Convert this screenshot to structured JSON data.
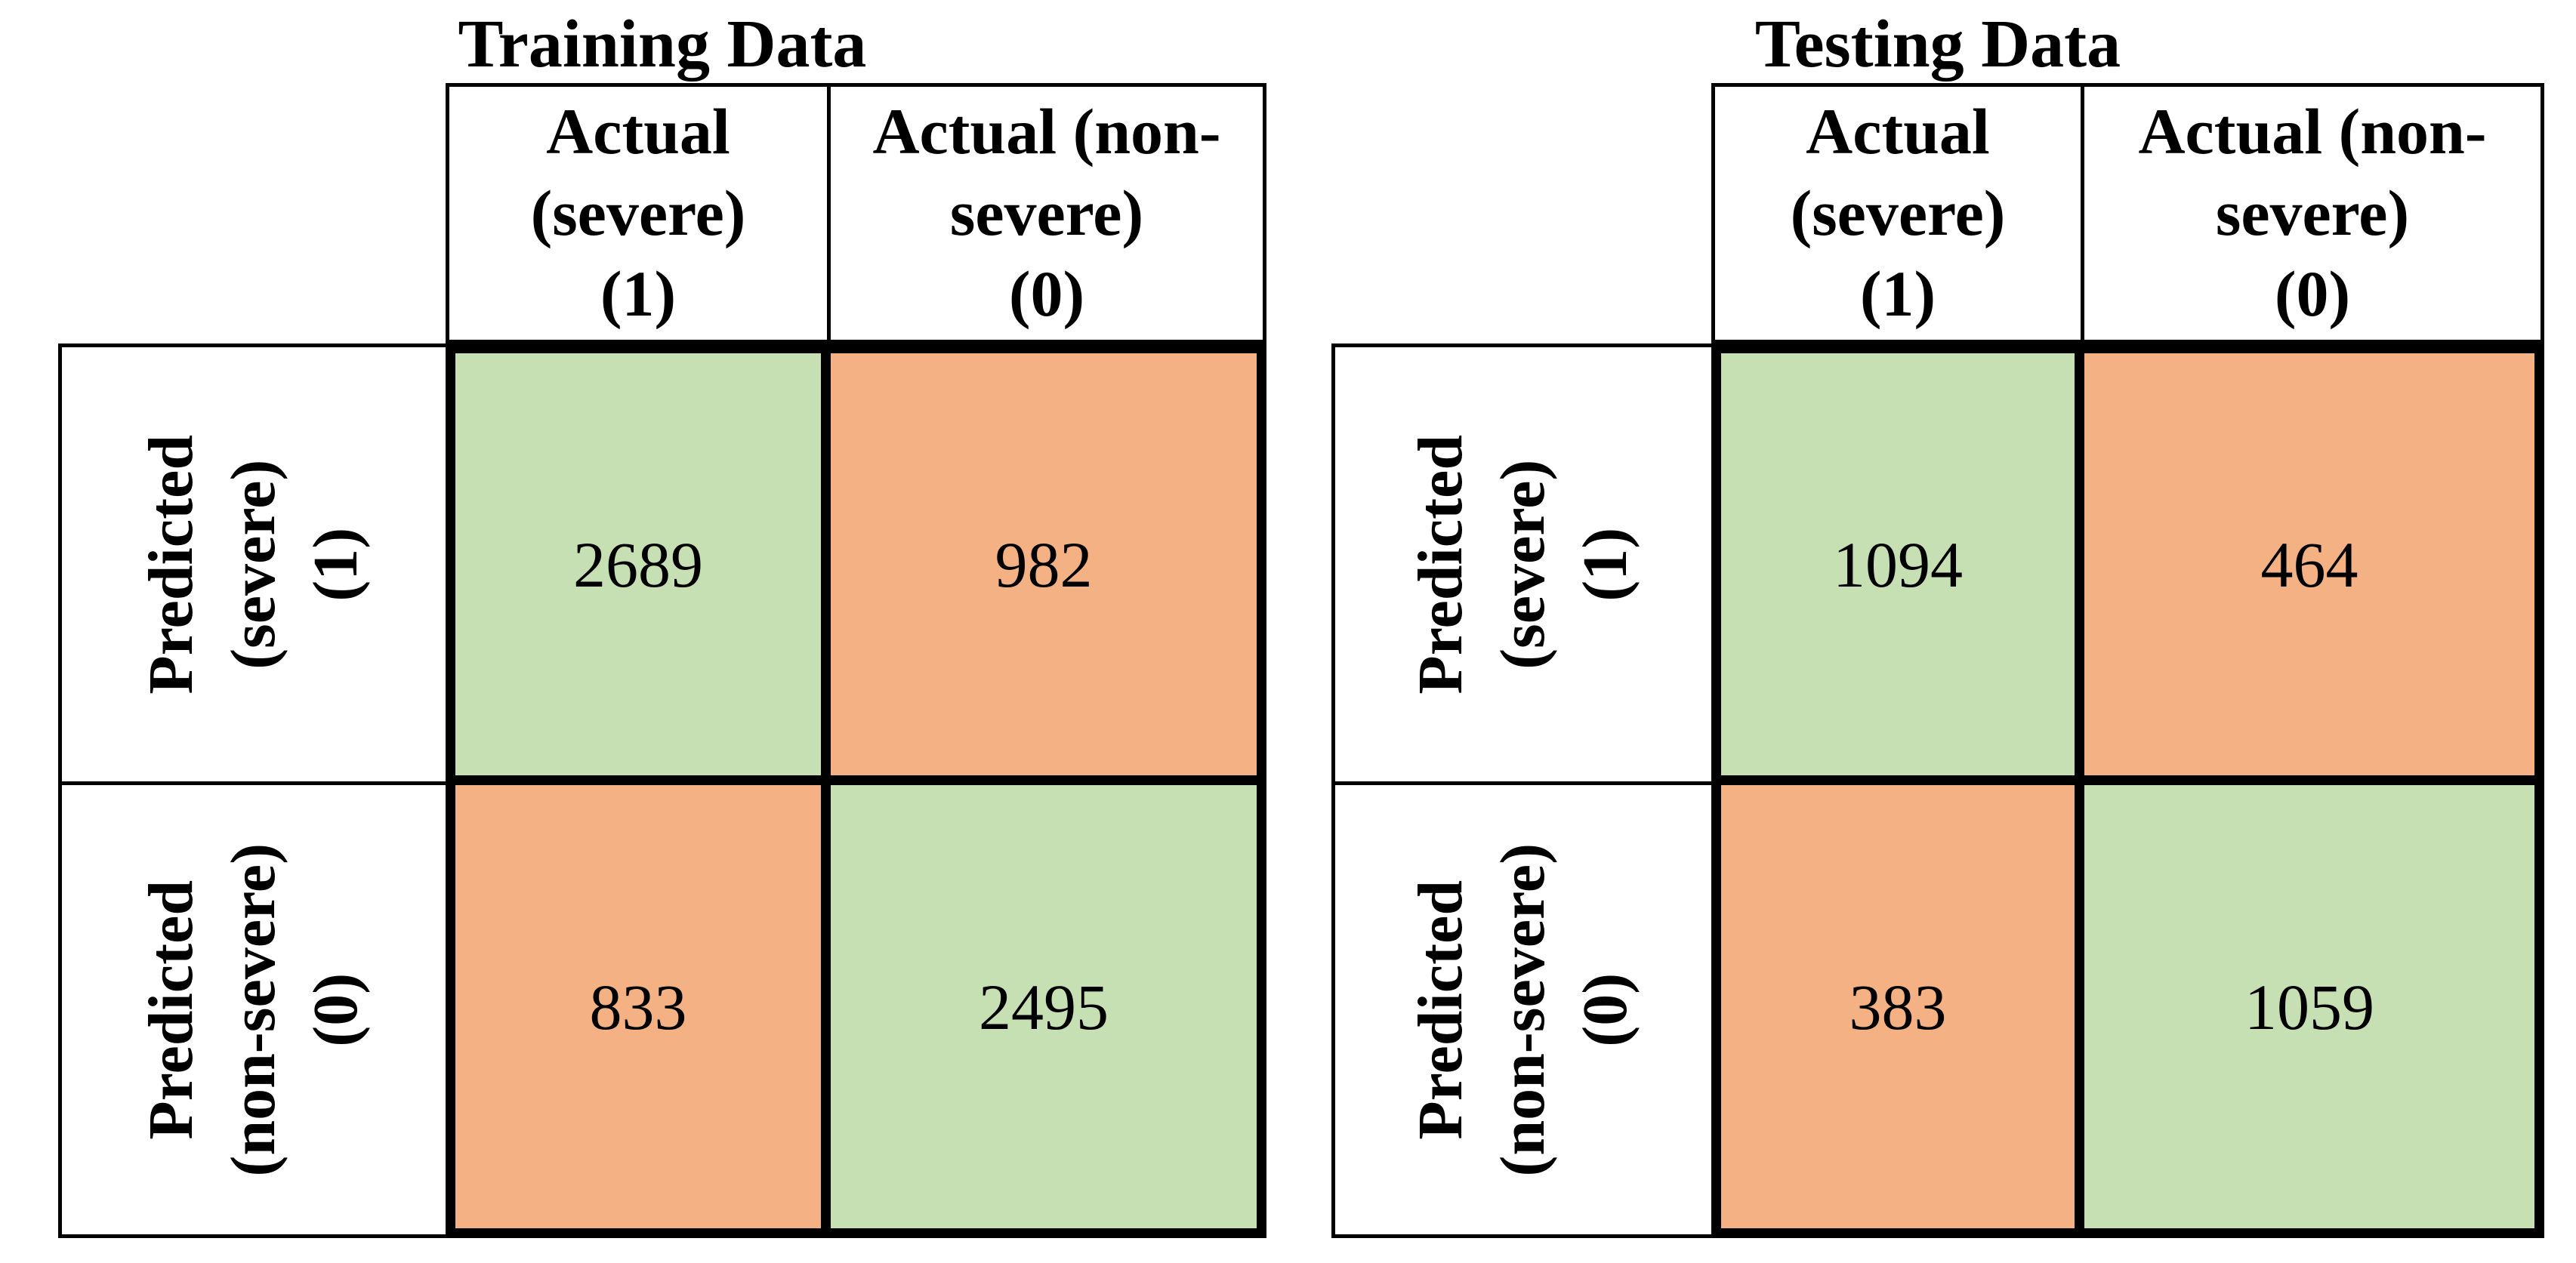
{
  "colors": {
    "match": "#c6e0b4",
    "mismatch": "#f4b183",
    "border": "#000000",
    "text": "#000000"
  },
  "chart_data": [
    {
      "type": "heatmap",
      "title": "Training Data",
      "col_headers": [
        "Actual (severe) (1)",
        "Actual (non-severe) (0)"
      ],
      "row_headers": [
        "Predicted (severe) (1)",
        "Predicted (non-severe) (0)"
      ],
      "col_header_lines": [
        [
          "Actual",
          "(severe)",
          "(1)"
        ],
        [
          "Actual (non-",
          "severe)",
          "(0)"
        ]
      ],
      "row_header_lines": [
        [
          "Predicted",
          "(severe)",
          "(1)"
        ],
        [
          "Predicted",
          "(non-severe)",
          "(0)"
        ]
      ],
      "values": [
        [
          2689,
          982
        ],
        [
          833,
          2495
        ]
      ],
      "cell_roles": [
        [
          "true-positive",
          "false-positive"
        ],
        [
          "false-negative",
          "true-negative"
        ]
      ],
      "cell_colors": [
        [
          "#c6e0b4",
          "#f4b183"
        ],
        [
          "#f4b183",
          "#c6e0b4"
        ]
      ]
    },
    {
      "type": "heatmap",
      "title": "Testing Data",
      "col_headers": [
        "Actual (severe) (1)",
        "Actual (non-severe) (0)"
      ],
      "row_headers": [
        "Predicted (severe) (1)",
        "Predicted (non-severe) (0)"
      ],
      "col_header_lines": [
        [
          "Actual",
          "(severe)",
          "(1)"
        ],
        [
          "Actual (non-",
          "severe)",
          "(0)"
        ]
      ],
      "row_header_lines": [
        [
          "Predicted",
          "(severe)",
          "(1)"
        ],
        [
          "Predicted",
          "(non-severe)",
          "(0)"
        ]
      ],
      "values": [
        [
          1094,
          464
        ],
        [
          383,
          1059
        ]
      ],
      "cell_roles": [
        [
          "true-positive",
          "false-positive"
        ],
        [
          "false-negative",
          "true-negative"
        ]
      ],
      "cell_colors": [
        [
          "#c6e0b4",
          "#f4b183"
        ],
        [
          "#f4b183",
          "#c6e0b4"
        ]
      ]
    }
  ]
}
